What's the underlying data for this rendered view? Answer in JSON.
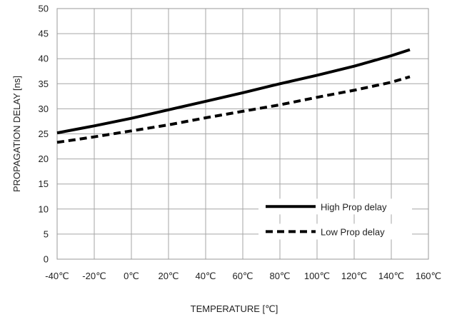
{
  "chart_data": {
    "type": "line",
    "xlabel": "TEMPERATURE [℃]",
    "ylabel": "PROPAGATION DELAY [ns]",
    "xlim": [
      -40,
      160
    ],
    "ylim": [
      0,
      50
    ],
    "x_ticks": [
      -40,
      -20,
      0,
      20,
      40,
      60,
      80,
      100,
      120,
      140,
      160
    ],
    "x_tick_labels": [
      "-40℃",
      "-20℃",
      "0℃",
      "20℃",
      "40℃",
      "60℃",
      "80℃",
      "100℃",
      "120℃",
      "140℃",
      "160℃"
    ],
    "y_ticks": [
      0,
      5,
      10,
      15,
      20,
      25,
      30,
      35,
      40,
      45,
      50
    ],
    "y_tick_labels": [
      "0",
      "5",
      "10",
      "15",
      "20",
      "25",
      "30",
      "35",
      "40",
      "45",
      "50"
    ],
    "grid": true,
    "legend_position": "bottom-right",
    "series": [
      {
        "name": "High Prop delay",
        "style": "solid",
        "color": "#000000",
        "x": [
          -40,
          -20,
          0,
          20,
          40,
          60,
          80,
          100,
          120,
          140,
          150
        ],
        "y": [
          25.2,
          26.6,
          28.1,
          29.8,
          31.5,
          33.2,
          35.0,
          36.7,
          38.5,
          40.6,
          41.8
        ]
      },
      {
        "name": "Low Prop delay",
        "style": "dashed",
        "color": "#000000",
        "x": [
          -40,
          -20,
          0,
          20,
          40,
          60,
          80,
          100,
          120,
          140,
          150
        ],
        "y": [
          23.3,
          24.4,
          25.6,
          26.8,
          28.2,
          29.5,
          30.8,
          32.3,
          33.7,
          35.3,
          36.4
        ]
      }
    ]
  }
}
